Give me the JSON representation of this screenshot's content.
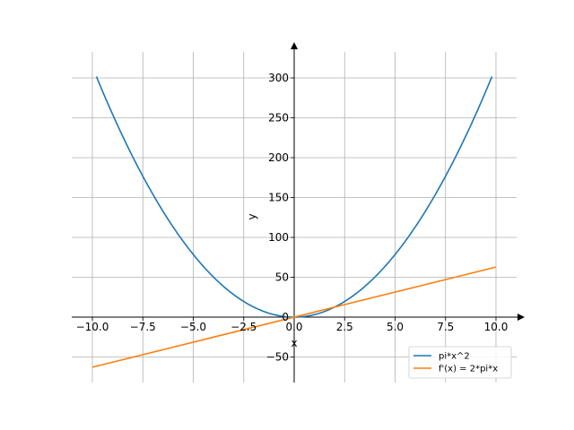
{
  "chart_data": {
    "type": "line",
    "xlabel": "x",
    "ylabel": "y",
    "xlim": [
      -10,
      10
    ],
    "ylim": [
      -80,
      330
    ],
    "xticks": [
      -10.0,
      -7.5,
      -5.0,
      -2.5,
      0.0,
      2.5,
      5.0,
      7.5,
      10.0
    ],
    "xtick_labels": [
      "−10.0",
      "−7.5",
      "−5.0",
      "−2.5",
      "0.0",
      "2.5",
      "5.0",
      "7.5",
      "10.0"
    ],
    "yticks": [
      -50,
      0,
      50,
      100,
      150,
      200,
      250,
      300
    ],
    "ytick_labels": [
      "−50",
      "0",
      "50",
      "100",
      "150",
      "200",
      "250",
      "300"
    ],
    "grid": true,
    "legend_position": "bottom-right",
    "series": [
      {
        "name": "pi*x^2",
        "color": "#1f77b4",
        "x": [
          -9.8,
          -9,
          -8,
          -7,
          -6,
          -5,
          -4,
          -3,
          -2,
          -1,
          0,
          1,
          2,
          3,
          4,
          5,
          6,
          7,
          8,
          9,
          9.8
        ],
        "y": [
          301.7,
          254.5,
          201.1,
          153.9,
          113.1,
          78.5,
          50.3,
          28.3,
          12.6,
          3.1,
          0,
          3.1,
          12.6,
          28.3,
          50.3,
          78.5,
          113.1,
          153.9,
          201.1,
          254.5,
          301.7
        ]
      },
      {
        "name": "f'(x) = 2*pi*x",
        "color": "#ff7f0e",
        "x": [
          -10,
          10
        ],
        "y": [
          -62.8,
          62.8
        ]
      }
    ]
  }
}
